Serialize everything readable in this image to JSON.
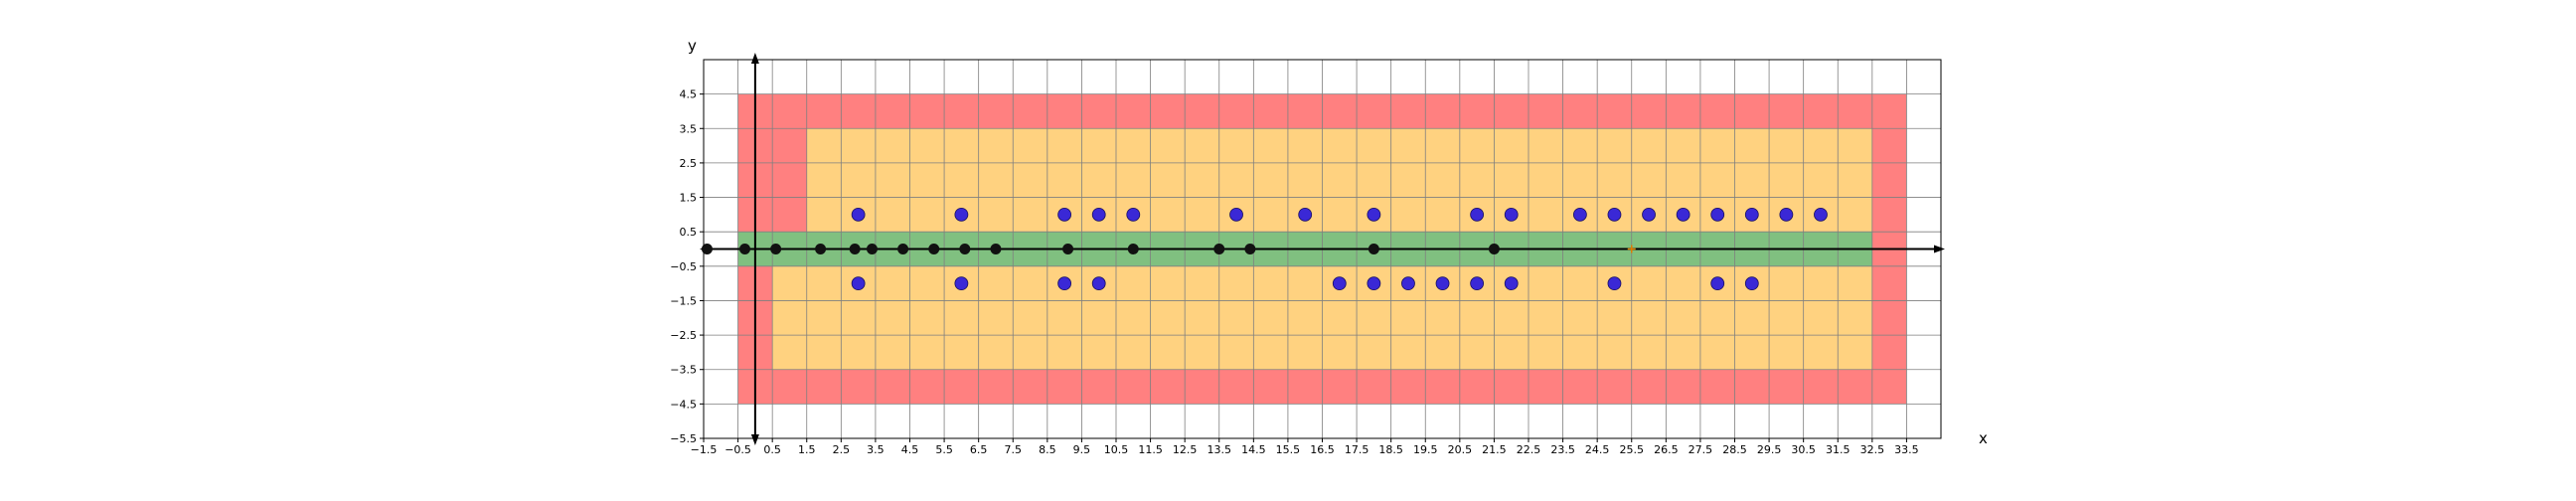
{
  "chart_data": {
    "type": "scatter",
    "xlabel": "x",
    "ylabel": "y",
    "xlim": [
      -1.5,
      34.5
    ],
    "ylim": [
      -5.5,
      5.5
    ],
    "grid": true,
    "x_ticks": [
      -1.5,
      -0.5,
      0.5,
      1.5,
      2.5,
      3.5,
      4.5,
      5.5,
      6.5,
      7.5,
      8.5,
      9.5,
      10.5,
      11.5,
      12.5,
      13.5,
      14.5,
      15.5,
      16.5,
      17.5,
      18.5,
      19.5,
      20.5,
      21.5,
      22.5,
      23.5,
      24.5,
      25.5,
      26.5,
      27.5,
      28.5,
      29.5,
      30.5,
      31.5,
      32.5,
      33.5
    ],
    "y_ticks": [
      -5.5,
      -4.5,
      -3.5,
      -2.5,
      -1.5,
      -0.5,
      0.5,
      1.5,
      2.5,
      3.5,
      4.5
    ],
    "colors": {
      "outer_region": "#ff8080",
      "middle_region": "#ffd280",
      "inner_band": "#80c080",
      "axis_points": "#111111",
      "blue_points": "#3a28d6",
      "marker": "#e07b00",
      "grid": "#7f7f7f"
    },
    "regions": [
      {
        "role": "outer",
        "polygon": [
          [
            -0.5,
            4.5
          ],
          [
            33.5,
            4.5
          ],
          [
            33.5,
            -4.5
          ],
          [
            -0.5,
            -4.5
          ]
        ]
      },
      {
        "role": "middle",
        "polygon": [
          [
            1.5,
            3.5
          ],
          [
            32.5,
            3.5
          ],
          [
            32.5,
            -3.5
          ],
          [
            0.5,
            -3.5
          ],
          [
            0.5,
            -0.5
          ],
          [
            -0.5,
            -0.5
          ],
          [
            -0.5,
            0.5
          ],
          [
            1.5,
            0.5
          ]
        ]
      },
      {
        "role": "inner",
        "polygon": [
          [
            -0.5,
            0.5
          ],
          [
            32.5,
            0.5
          ],
          [
            32.5,
            -0.5
          ],
          [
            -0.5,
            -0.5
          ]
        ]
      }
    ],
    "axis_points": [
      -1.4,
      -0.3,
      0.6,
      1.9,
      2.9,
      3.4,
      4.3,
      5.2,
      6.1,
      7.0,
      9.1,
      11.0,
      13.5,
      14.4,
      18.0,
      21.5
    ],
    "blue_points": [
      [
        3,
        1
      ],
      [
        6,
        1
      ],
      [
        9,
        1
      ],
      [
        10,
        1
      ],
      [
        11,
        1
      ],
      [
        14,
        1
      ],
      [
        16,
        1
      ],
      [
        18,
        1
      ],
      [
        21,
        1
      ],
      [
        22,
        1
      ],
      [
        24,
        1
      ],
      [
        25,
        1
      ],
      [
        26,
        1
      ],
      [
        27,
        1
      ],
      [
        28,
        1
      ],
      [
        29,
        1
      ],
      [
        30,
        1
      ],
      [
        31,
        1
      ],
      [
        3,
        -1
      ],
      [
        6,
        -1
      ],
      [
        9,
        -1
      ],
      [
        10,
        -1
      ],
      [
        17,
        -1
      ],
      [
        18,
        -1
      ],
      [
        19,
        -1
      ],
      [
        20,
        -1
      ],
      [
        21,
        -1
      ],
      [
        22,
        -1
      ],
      [
        25,
        -1
      ],
      [
        28,
        -1
      ],
      [
        29,
        -1
      ]
    ],
    "marker": [
      25.5,
      0
    ]
  }
}
